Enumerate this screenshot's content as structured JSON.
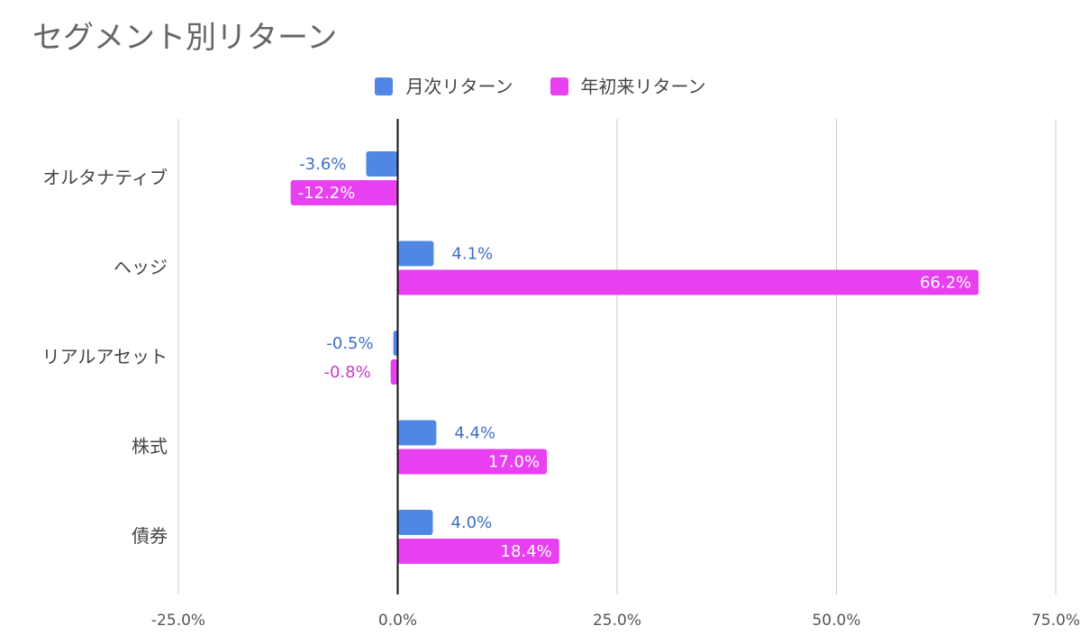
{
  "chart_data": {
    "type": "bar",
    "orientation": "horizontal",
    "title": "セグメント別リターン",
    "categories": [
      "オルタナティブ",
      "ヘッジ",
      "リアルアセット",
      "株式",
      "債券"
    ],
    "series": [
      {
        "name": "月次リターン",
        "color": "#5087e6",
        "values": [
          -3.6,
          4.1,
          -0.5,
          4.4,
          4.0
        ],
        "labels": [
          "-3.6%",
          "4.1%",
          "-0.5%",
          "4.4%",
          "4.0%"
        ]
      },
      {
        "name": "年初来リターン",
        "color": "#e83ff0",
        "values": [
          -12.2,
          66.2,
          -0.8,
          17.0,
          18.4
        ],
        "labels": [
          "-12.2%",
          "66.2%",
          "-0.8%",
          "17.0%",
          "18.4%"
        ]
      }
    ],
    "xlim": [
      -25,
      75
    ],
    "xticks": [
      -25,
      0,
      25,
      50,
      75
    ],
    "xtick_labels": [
      "-25.0%",
      "0.0%",
      "25.0%",
      "50.0%",
      "75.0%"
    ],
    "grid": true,
    "legend_position": "top-center"
  }
}
